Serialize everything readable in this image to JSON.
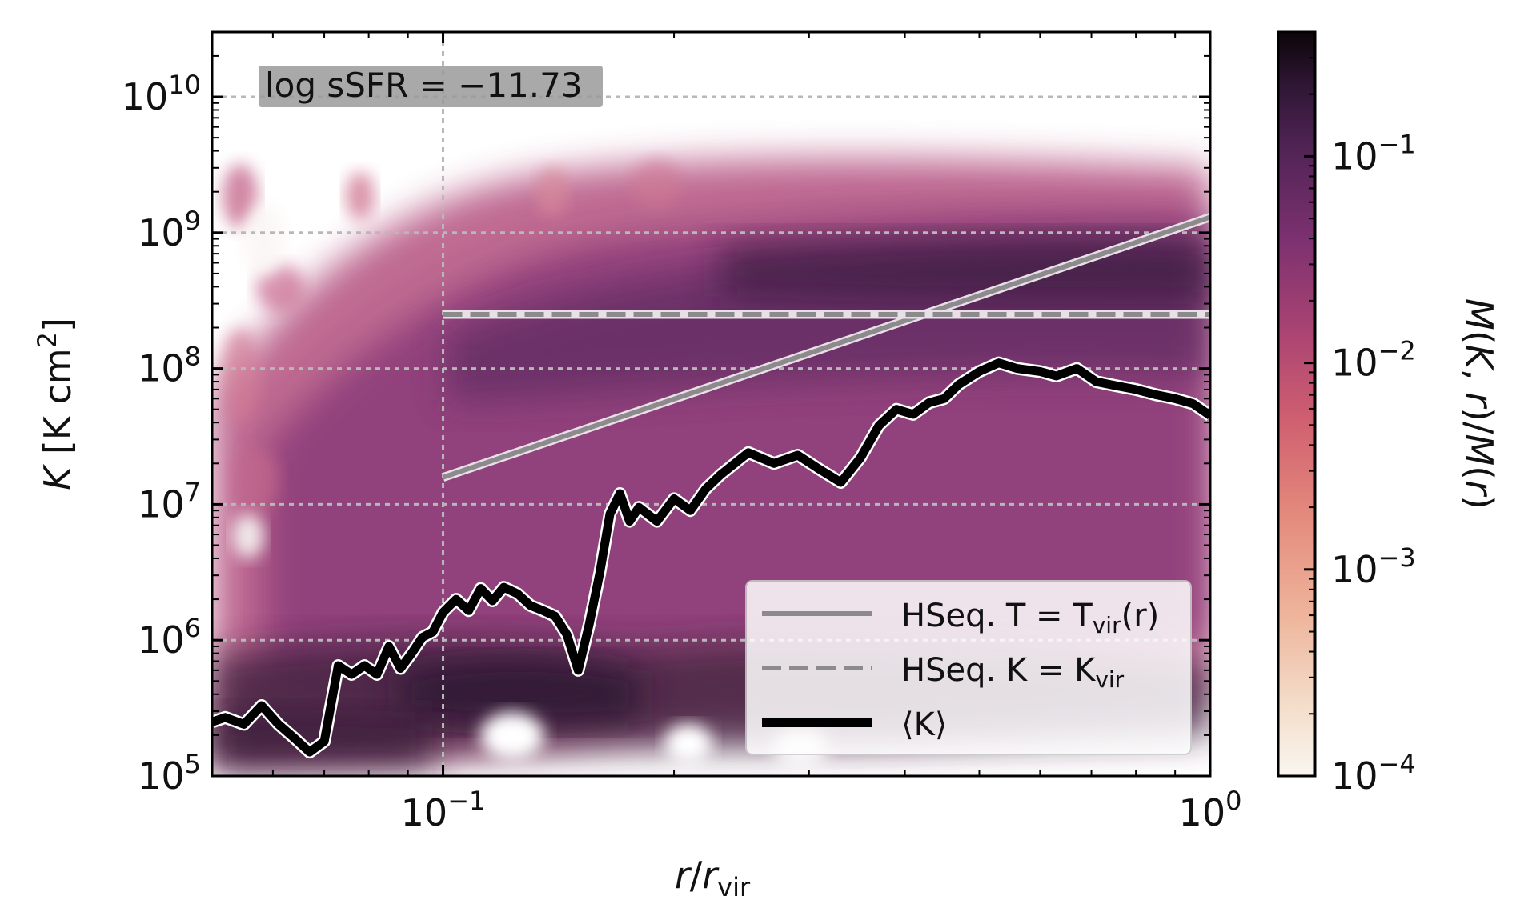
{
  "chart_data": {
    "type": "heatmap",
    "xlabel": "r/r_vir",
    "ylabel": "K [K cm²]",
    "xscale": "log",
    "yscale": "log",
    "xlim": [
      0.05,
      1.0
    ],
    "ylim": [
      100000,
      30000000000
    ],
    "x_ticks": [
      {
        "value": 0.1,
        "base": "10",
        "exp": "−1"
      },
      {
        "value": 1.0,
        "base": "10",
        "exp": "0"
      }
    ],
    "y_ticks": [
      {
        "value": 100000,
        "base": "10",
        "exp": "5"
      },
      {
        "value": 1000000,
        "base": "10",
        "exp": "6"
      },
      {
        "value": 10000000,
        "base": "10",
        "exp": "7"
      },
      {
        "value": 100000000,
        "base": "10",
        "exp": "8"
      },
      {
        "value": 1000000000,
        "base": "10",
        "exp": "9"
      },
      {
        "value": 10000000000,
        "base": "10",
        "exp": "10"
      }
    ],
    "grid": true,
    "annotation": "log sSFR = −11.73",
    "colorbar": {
      "label": "M(K, r)/M(r)",
      "scale": "log",
      "range": [
        0.0001,
        0.4
      ],
      "colormap": "rocket_r",
      "ticks": [
        {
          "value": 0.0001,
          "base": "10",
          "exp": "−4"
        },
        {
          "value": 0.001,
          "base": "10",
          "exp": "−3"
        },
        {
          "value": 0.01,
          "base": "10",
          "exp": "−2"
        },
        {
          "value": 0.1,
          "base": "10",
          "exp": "−1"
        }
      ]
    },
    "series": [
      {
        "name": "HSeq. T = T_vir(r)",
        "style": "solid-gray",
        "x": [
          0.1,
          1.0
        ],
        "y": [
          15800000,
          1300000000
        ]
      },
      {
        "name": "HSeq. K = K_vir",
        "style": "dashed-gray",
        "x": [
          0.1,
          1.0
        ],
        "y": [
          250000000,
          250000000
        ]
      },
      {
        "name": "⟨K⟩",
        "style": "thick-black",
        "x": [
          0.05,
          0.052,
          0.055,
          0.058,
          0.061,
          0.064,
          0.067,
          0.07,
          0.073,
          0.076,
          0.079,
          0.082,
          0.085,
          0.088,
          0.091,
          0.094,
          0.097,
          0.1,
          0.104,
          0.108,
          0.112,
          0.116,
          0.12,
          0.125,
          0.13,
          0.135,
          0.14,
          0.145,
          0.15,
          0.155,
          0.16,
          0.165,
          0.17,
          0.175,
          0.18,
          0.19,
          0.2,
          0.21,
          0.22,
          0.23,
          0.24,
          0.25,
          0.27,
          0.29,
          0.31,
          0.33,
          0.35,
          0.37,
          0.39,
          0.41,
          0.43,
          0.45,
          0.47,
          0.5,
          0.53,
          0.56,
          0.6,
          0.63,
          0.67,
          0.71,
          0.75,
          0.8,
          0.85,
          0.9,
          0.95,
          1.0
        ],
        "y": [
          250000,
          270000,
          240000,
          330000,
          240000,
          190000,
          150000,
          180000,
          650000,
          560000,
          650000,
          560000,
          900000,
          620000,
          800000,
          1050000,
          1150000,
          1600000,
          2000000,
          1650000,
          2400000,
          1950000,
          2450000,
          2200000,
          1800000,
          1650000,
          1500000,
          1100000,
          600000,
          1300000,
          3100000,
          8500000,
          12000000,
          7500000,
          9500000,
          7500000,
          11000000,
          9000000,
          13000000,
          16500000,
          20000000,
          24000000,
          20000000,
          23000000,
          18000000,
          14500000,
          22000000,
          38000000,
          50000000,
          46000000,
          56000000,
          60000000,
          76000000,
          95000000,
          110000000,
          100000000,
          95000000,
          88000000,
          100000000,
          80000000,
          75000000,
          70000000,
          64000000,
          60000000,
          55000000,
          45000000
        ]
      }
    ],
    "legend": {
      "placement": "lower-right",
      "entries": [
        {
          "text": "HSeq. T = T",
          "sub": "vir",
          "tail": "(r)"
        },
        {
          "text": "HSeq. K = K",
          "sub": "vir",
          "tail": ""
        },
        {
          "text": "⟨K⟩",
          "sub": "",
          "tail": ""
        }
      ]
    }
  }
}
